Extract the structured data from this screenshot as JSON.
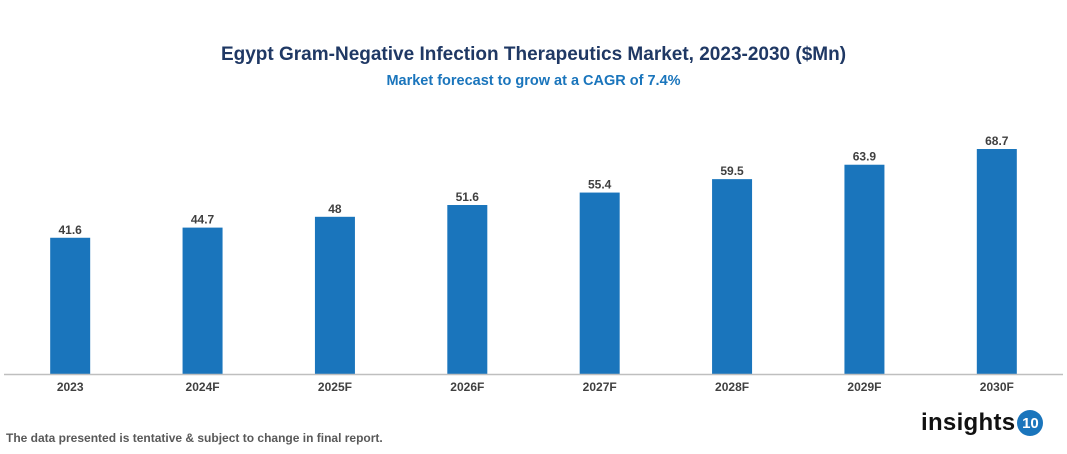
{
  "chart_data": {
    "type": "bar",
    "title": "Egypt Gram-Negative Infection Therapeutics Market, 2023-2030 ($Mn)",
    "subtitle": "Market forecast to grow at a CAGR of 7.4%",
    "categories": [
      "2023",
      "2024F",
      "2025F",
      "2026F",
      "2027F",
      "2028F",
      "2029F",
      "2030F"
    ],
    "values": [
      41.6,
      44.7,
      48,
      51.6,
      55.4,
      59.5,
      63.9,
      68.7
    ],
    "data_labels": [
      "41.6",
      "44.7",
      "48",
      "51.6",
      "55.4",
      "59.5",
      "63.9",
      "68.7"
    ],
    "xlabel": "",
    "ylabel": "",
    "ylim": [
      0,
      80
    ],
    "grid": false,
    "y_axis_visible": false,
    "bar_color": "#1a75bc"
  },
  "footer": {
    "note": "The data presented is tentative & subject to change in final report.",
    "logo_text": "insights",
    "logo_badge": "10"
  },
  "colors": {
    "title": "#1f3864",
    "subtitle": "#1a75bc",
    "axis": "#bfbfbf",
    "labels": "#404040"
  }
}
